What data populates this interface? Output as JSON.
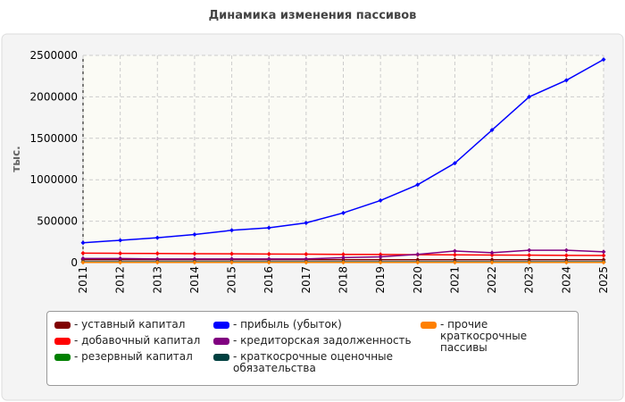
{
  "chart_data": {
    "type": "line",
    "title": "Динамика изменения пассивов",
    "y_label": "тыс.",
    "categories": [
      "2011",
      "2012",
      "2013",
      "2014",
      "2015",
      "2016",
      "2017",
      "2018",
      "2019",
      "2020",
      "2021",
      "2022",
      "2023",
      "2024",
      "2025"
    ],
    "ylim": [
      0,
      2500000
    ],
    "yticks": [
      0,
      500000,
      1000000,
      1500000,
      2000000,
      2500000
    ],
    "grid": true,
    "series": [
      {
        "name": "- уставный капитал",
        "color": "#800000",
        "values": [
          35000,
          35000,
          35000,
          35000,
          35000,
          35000,
          35000,
          35000,
          35000,
          35000,
          35000,
          35000,
          35000,
          35000,
          35000
        ]
      },
      {
        "name": "- добавочный капитал",
        "color": "#ff0000",
        "values": [
          115000,
          112000,
          110000,
          108000,
          106000,
          104000,
          102000,
          100000,
          98000,
          96000,
          94000,
          92000,
          90000,
          88000,
          86000
        ]
      },
      {
        "name": "- резервный капитал",
        "color": "#008000",
        "values": [
          5000,
          5000,
          5000,
          5000,
          5000,
          5000,
          5000,
          5000,
          5000,
          5000,
          5000,
          5000,
          5000,
          5000,
          5000
        ]
      },
      {
        "name": "- прибыль (убыток)",
        "color": "#0000ff",
        "values": [
          240000,
          270000,
          300000,
          340000,
          390000,
          420000,
          480000,
          600000,
          750000,
          940000,
          1200000,
          1600000,
          2000000,
          2200000,
          2450000
        ]
      },
      {
        "name": "- кредиторская задолженность",
        "color": "#800080",
        "values": [
          50000,
          50000,
          45000,
          45000,
          45000,
          45000,
          45000,
          60000,
          70000,
          100000,
          140000,
          120000,
          150000,
          150000,
          130000
        ]
      },
      {
        "name": "- краткосрочные оценочные обязательства",
        "color": "#004040",
        "values": [
          10000,
          10000,
          10000,
          10000,
          10000,
          10000,
          10000,
          10000,
          10000,
          10000,
          10000,
          10000,
          10000,
          10000,
          10000
        ]
      },
      {
        "name": "- прочие краткосрочные пассивы",
        "color": "#ff8000",
        "values": [
          3000,
          3000,
          3000,
          3000,
          3000,
          3000,
          3000,
          3000,
          3000,
          3000,
          3000,
          3000,
          3000,
          3000,
          3000
        ]
      }
    ]
  }
}
